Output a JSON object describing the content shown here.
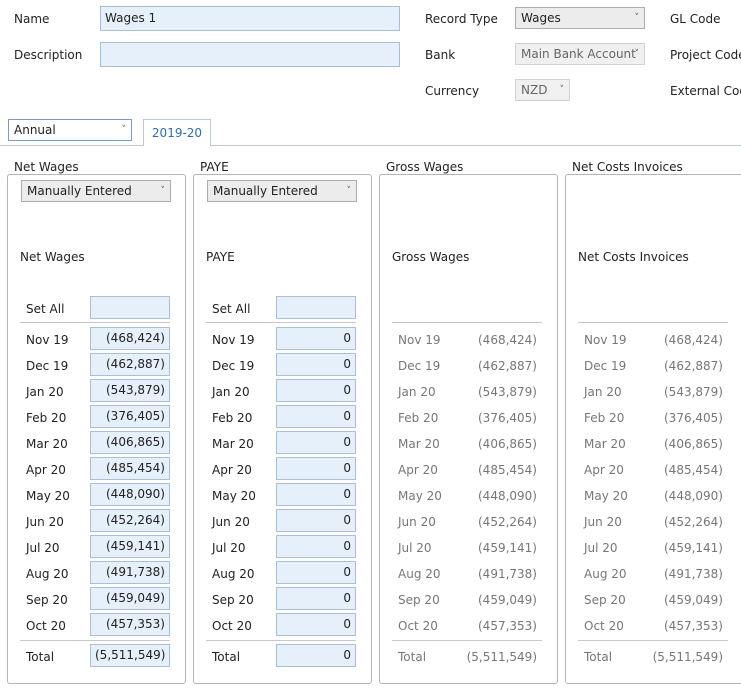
{
  "form": {
    "name_label": "Name",
    "name_value": "Wages 1",
    "description_label": "Description",
    "description_value": "",
    "record_type_label": "Record Type",
    "record_type_value": "Wages",
    "bank_label": "Bank",
    "bank_value": "Main Bank Account",
    "currency_label": "Currency",
    "currency_value": "NZD",
    "gl_code_label": "GL Code",
    "project_code_label": "Project Code",
    "external_code_label": "External Code"
  },
  "period": {
    "selector_value": "Annual",
    "tab_label": "2019-20"
  },
  "months": [
    "Nov 19",
    "Dec 19",
    "Jan 20",
    "Feb 20",
    "Mar 20",
    "Apr 20",
    "May 20",
    "Jun 20",
    "Jul 20",
    "Aug 20",
    "Sep 20",
    "Oct 20"
  ],
  "panels": [
    {
      "title": "Net Wages",
      "method": "Manually Entered",
      "subtitle": "Net Wages",
      "set_all_label": "Set All",
      "set_all_value": "",
      "values": [
        "(468,424)",
        "(462,887)",
        "(543,879)",
        "(376,405)",
        "(406,865)",
        "(485,454)",
        "(448,090)",
        "(452,264)",
        "(459,141)",
        "(491,738)",
        "(459,049)",
        "(457,353)"
      ],
      "total_label": "Total",
      "total": "(5,511,549)"
    },
    {
      "title": "PAYE",
      "method": "Manually Entered",
      "subtitle": "PAYE",
      "set_all_label": "Set All",
      "set_all_value": "",
      "values": [
        "0",
        "0",
        "0",
        "0",
        "0",
        "0",
        "0",
        "0",
        "0",
        "0",
        "0",
        "0"
      ],
      "total_label": "Total",
      "total": "0"
    },
    {
      "title": "Gross Wages",
      "subtitle": "Gross Wages",
      "values": [
        "(468,424)",
        "(462,887)",
        "(543,879)",
        "(376,405)",
        "(406,865)",
        "(485,454)",
        "(448,090)",
        "(452,264)",
        "(459,141)",
        "(491,738)",
        "(459,049)",
        "(457,353)"
      ],
      "total_label": "Total",
      "total": "(5,511,549)"
    },
    {
      "title": "Net Costs Invoices",
      "subtitle": "Net Costs Invoices",
      "values": [
        "(468,424)",
        "(462,887)",
        "(543,879)",
        "(376,405)",
        "(406,865)",
        "(485,454)",
        "(448,090)",
        "(452,264)",
        "(459,141)",
        "(491,738)",
        "(459,049)",
        "(457,353)"
      ],
      "total_label": "Total",
      "total": "(5,511,549)"
    }
  ]
}
